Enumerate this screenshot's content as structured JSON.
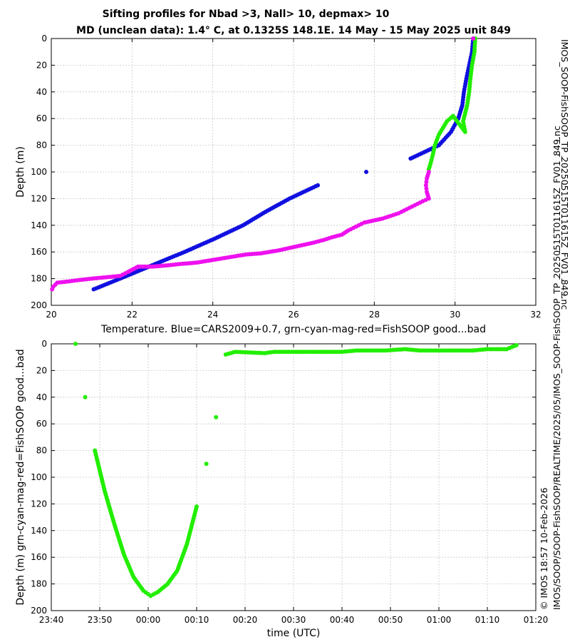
{
  "titles": {
    "line1": "Sifting profiles for Nbad >3, Nall> 10, depmax> 10",
    "line2": "MD (unclean data): 1.4° C, at 0.1325S 148.1E. 14 May - 15 May 2025 unit 849"
  },
  "side_labels": {
    "file": "IMOS_SOOP-FishSOOP_TP_20250515T011615Z_FV01_849.nc",
    "credit": "© IMOS 18:57 10-Feb-2026",
    "path": "IMOS/SOOP/SOOP-FishSOOP/REALTIME/2025/05/IMOS_SOOP-FishSOOP_TP_20250515T011615Z_FV01_849.nc"
  },
  "colors": {
    "cars": "#1010e0",
    "good": "#22ee00",
    "cyan": "#00e0e0",
    "mag": "#ee11ee",
    "bad": "#ee0000",
    "grid": "#c8c8c8"
  },
  "chart_data": [
    {
      "type": "scatter",
      "xlabel": "Temperature. Blue=CARS2009+0.7, grn-cyan-mag-red=FishSOOP good...bad",
      "ylabel": "Depth (m)",
      "xlim": [
        20,
        32
      ],
      "ylim": [
        200,
        0
      ],
      "y_reversed": true,
      "xticks": [
        "20",
        "22",
        "24",
        "26",
        "28",
        "30",
        "32"
      ],
      "yticks": [
        "0",
        "20",
        "40",
        "60",
        "80",
        "100",
        "120",
        "140",
        "160",
        "180",
        "200"
      ],
      "grid": true,
      "series": [
        {
          "color": "cars",
          "points": [
            [
              30.45,
              0
            ],
            [
              30.42,
              10
            ],
            [
              30.35,
              20
            ],
            [
              30.28,
              30
            ],
            [
              30.22,
              40
            ],
            [
              30.18,
              50
            ],
            [
              30.08,
              60
            ],
            [
              29.9,
              70
            ],
            [
              29.6,
              80
            ],
            [
              28.9,
              90
            ],
            [
              27.8,
              100
            ],
            [
              26.6,
              110
            ],
            [
              25.9,
              120
            ],
            [
              25.3,
              130
            ],
            [
              24.75,
              140
            ],
            [
              24.05,
              150
            ],
            [
              23.3,
              160
            ],
            [
              22.5,
              170
            ],
            [
              21.7,
              180
            ],
            [
              21.05,
              188
            ]
          ]
        },
        {
          "color": "good",
          "points": [
            [
              30.5,
              0
            ],
            [
              30.48,
              10
            ],
            [
              30.42,
              20
            ],
            [
              30.38,
              30
            ],
            [
              30.35,
              40
            ],
            [
              30.3,
              50
            ],
            [
              30.2,
              62
            ],
            [
              30.25,
              70
            ],
            [
              29.95,
              58
            ],
            [
              29.8,
              62
            ],
            [
              29.7,
              67
            ],
            [
              29.6,
              72
            ],
            [
              29.5,
              80
            ],
            [
              29.45,
              87
            ],
            [
              29.4,
              93
            ],
            [
              29.35,
              98
            ]
          ]
        },
        {
          "color": "mag",
          "points": [
            [
              30.45,
              0
            ],
            [
              29.35,
              100
            ],
            [
              29.3,
              105
            ],
            [
              29.28,
              110
            ],
            [
              29.3,
              115
            ],
            [
              29.35,
              120
            ],
            [
              29.2,
              122
            ],
            [
              29.0,
              125
            ],
            [
              28.8,
              128
            ],
            [
              28.6,
              131
            ],
            [
              28.4,
              133
            ],
            [
              28.2,
              135
            ],
            [
              27.75,
              138
            ],
            [
              27.55,
              141
            ],
            [
              27.35,
              144
            ],
            [
              27.2,
              147
            ],
            [
              26.95,
              149
            ],
            [
              26.75,
              151
            ],
            [
              26.5,
              153
            ],
            [
              26.2,
              155
            ],
            [
              25.9,
              157
            ],
            [
              25.6,
              159
            ],
            [
              25.2,
              161
            ],
            [
              24.8,
              162
            ],
            [
              24.4,
              164
            ],
            [
              24.0,
              166
            ],
            [
              23.6,
              168
            ],
            [
              23.2,
              169
            ],
            [
              22.9,
              170
            ],
            [
              22.5,
              171
            ],
            [
              22.15,
              171
            ],
            [
              21.9,
              175
            ],
            [
              21.7,
              178
            ],
            [
              21.35,
              179
            ],
            [
              21.0,
              180
            ],
            [
              20.7,
              181
            ],
            [
              20.45,
              182
            ],
            [
              20.15,
              183
            ],
            [
              20.05,
              186
            ],
            [
              20.02,
              188
            ]
          ]
        }
      ]
    },
    {
      "type": "scatter",
      "xlabel": "time (UTC)",
      "ylabel": "Depth (m) grn-cyan-mag-red=FishSOOP good...bad",
      "xlim": [
        "23:40",
        "01:20"
      ],
      "ylim": [
        200,
        0
      ],
      "y_reversed": true,
      "xticks": [
        "23:40",
        "23:50",
        "00:00",
        "00:10",
        "00:20",
        "00:30",
        "00:40",
        "00:50",
        "01:00",
        "01:10",
        "01:20"
      ],
      "yticks": [
        "0",
        "20",
        "40",
        "60",
        "80",
        "100",
        "120",
        "140",
        "160",
        "180",
        "200"
      ],
      "grid": true,
      "series": [
        {
          "color": "good",
          "points": [
            [
              "23:45:00",
              0
            ],
            [
              "23:47:00",
              40
            ],
            [
              "23:49:00",
              80
            ],
            [
              "23:51:00",
              110
            ],
            [
              "23:53:00",
              135
            ],
            [
              "23:55:00",
              158
            ],
            [
              "23:57:00",
              175
            ],
            [
              "23:59:00",
              185
            ],
            [
              "00:00:30",
              189
            ],
            [
              "00:02:00",
              186
            ],
            [
              "00:04:00",
              180
            ],
            [
              "00:06:00",
              170
            ],
            [
              "00:08:00",
              150
            ],
            [
              "00:10:00",
              122
            ],
            [
              "00:12:00",
              90
            ],
            [
              "00:14:00",
              55
            ],
            [
              "00:16:00",
              8
            ],
            [
              "00:18:00",
              6
            ],
            [
              "00:24:00",
              7
            ],
            [
              "00:26:00",
              6
            ],
            [
              "00:31:00",
              6
            ],
            [
              "00:34:00",
              6
            ],
            [
              "00:37:00",
              6
            ],
            [
              "00:40:00",
              6
            ],
            [
              "00:43:00",
              5
            ],
            [
              "00:46:00",
              5
            ],
            [
              "00:49:00",
              5
            ],
            [
              "00:53:00",
              4
            ],
            [
              "00:56:00",
              5
            ],
            [
              "00:59:00",
              5
            ],
            [
              "01:02:00",
              5
            ],
            [
              "01:05:00",
              5
            ],
            [
              "01:07:00",
              5
            ],
            [
              "01:10:00",
              4
            ],
            [
              "01:14:00",
              4
            ],
            [
              "01:16:00",
              1
            ]
          ]
        }
      ]
    }
  ]
}
